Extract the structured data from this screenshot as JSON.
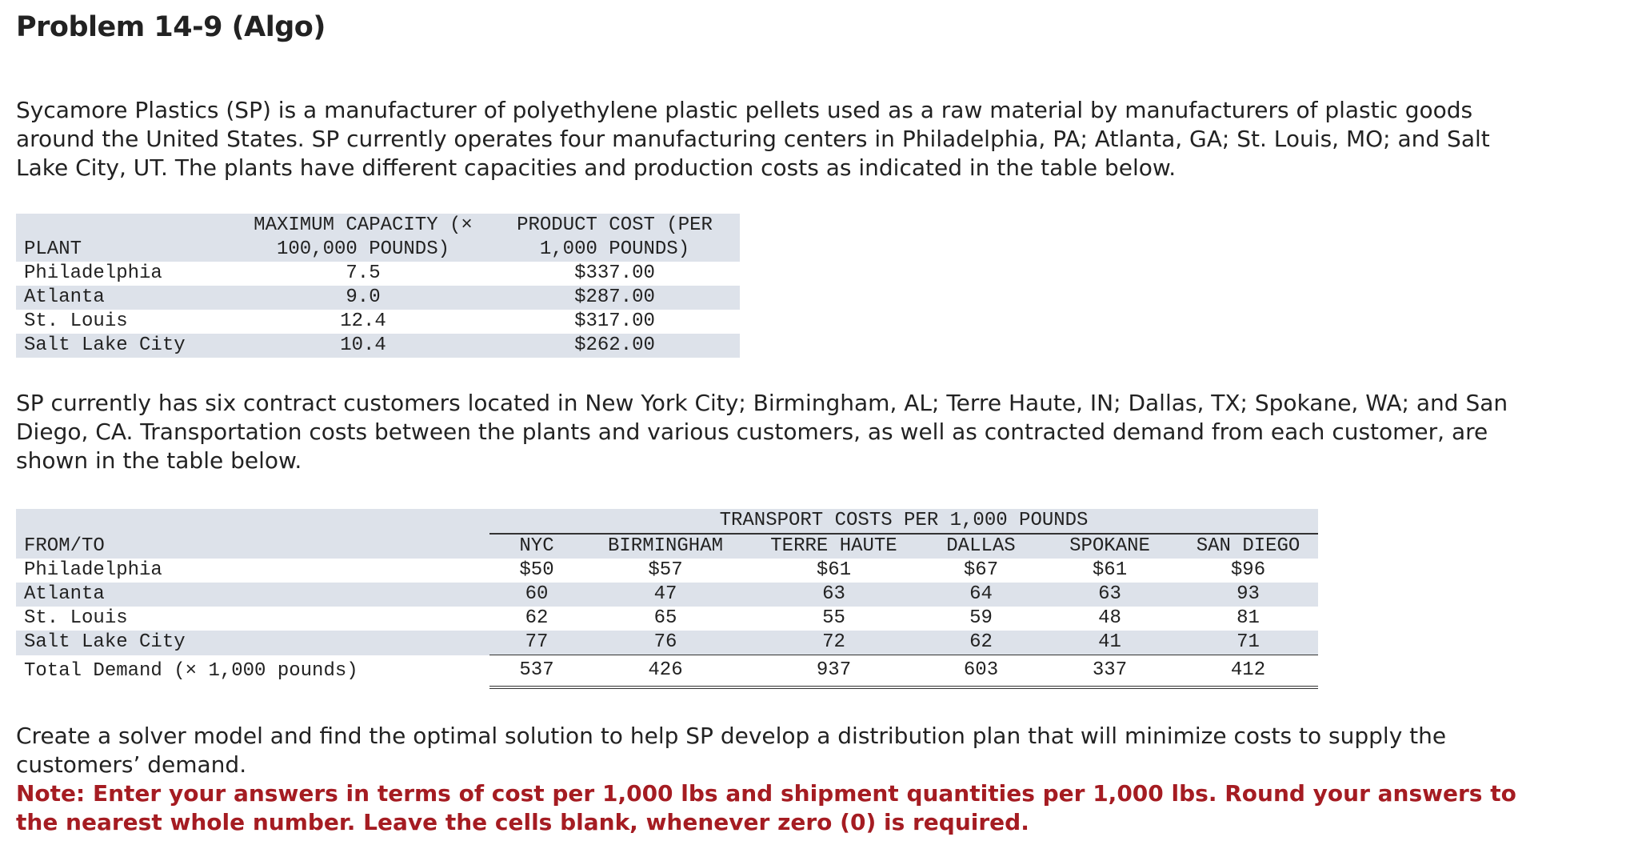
{
  "header": {
    "title": "Problem 14-9 (Algo)"
  },
  "paragraphs": [
    "Sycamore Plastics (SP) is a manufacturer of polyethylene plastic pellets used as a raw material by manufacturers of plastic goods around the United States. SP currently operates four manufacturing centers in Philadelphia, PA; Atlanta, GA; St. Louis, MO; and Salt Lake City, UT. The plants have different capacities and production costs as indicated in the table below.",
    "SP currently has six contract customers located in New York City; Birmingham, AL; Terre Haute, IN; Dallas, TX; Spokane, WA; and San Diego, CA. Transportation costs between the plants and various customers, as well as contracted demand from each customer, are shown in the table below.",
    "Create a solver model and find the optimal solution to help SP develop a distribution plan that will minimize costs to supply the customers’ demand."
  ],
  "note": "Note: Enter your answers in terms of cost per 1,000 lbs and shipment quantities per 1,000 lbs. Round your answers to the nearest whole number. Leave the cells blank, whenever zero (0) is required.",
  "plant_table": {
    "headers": [
      "PLANT",
      "MAXIMUM CAPACITY (× 100,000 POUNDS)",
      "PRODUCT COST (PER 1,000 POUNDS)"
    ],
    "rows": [
      [
        "Philadelphia",
        "7.5",
        "$337.00"
      ],
      [
        "Atlanta",
        "9.0",
        "$287.00"
      ],
      [
        "St. Louis",
        "12.4",
        "$317.00"
      ],
      [
        "Salt Lake City",
        "10.4",
        "$262.00"
      ]
    ]
  },
  "transport_table": {
    "group_header": "TRANSPORT COSTS PER 1,000 POUNDS",
    "headers": [
      "FROM/TO",
      "NYC",
      "BIRMINGHAM",
      "TERRE HAUTE",
      "DALLAS",
      "SPOKANE",
      "SAN DIEGO"
    ],
    "rows": [
      [
        "Philadelphia",
        "$50",
        "$57",
        "$61",
        "$67",
        "$61",
        "$96"
      ],
      [
        "Atlanta",
        "60",
        "47",
        "63",
        "64",
        "63",
        "93"
      ],
      [
        "St. Louis",
        "62",
        "65",
        "55",
        "59",
        "48",
        "81"
      ],
      [
        "Salt Lake City",
        "77",
        "76",
        "72",
        "62",
        "41",
        "71"
      ]
    ],
    "total_row": [
      "Total Demand (× 1,000 pounds)",
      "537",
      "426",
      "937",
      "603",
      "337",
      "412"
    ]
  }
}
